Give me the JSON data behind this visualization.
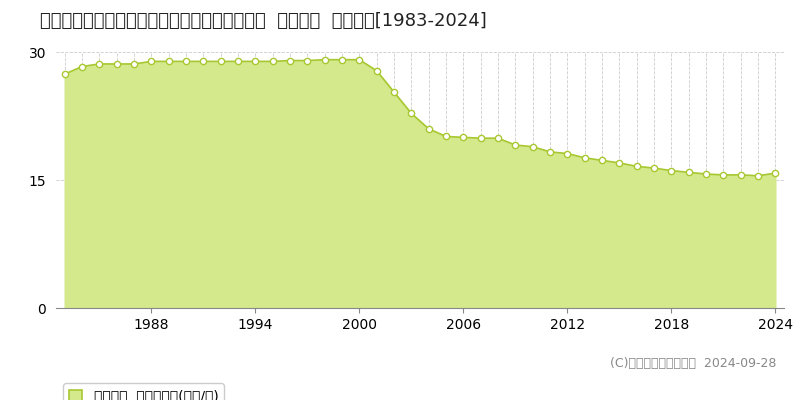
{
  "title": "新潟県上越市西城町３丁目字東二ノ辻１３番７  基準地価  地価推移[1983-2024]",
  "years": [
    1983,
    1984,
    1985,
    1986,
    1987,
    1988,
    1989,
    1990,
    1991,
    1992,
    1993,
    1994,
    1995,
    1996,
    1997,
    1998,
    1999,
    2000,
    2001,
    2002,
    2003,
    2004,
    2005,
    2006,
    2007,
    2008,
    2009,
    2010,
    2011,
    2012,
    2013,
    2014,
    2015,
    2016,
    2017,
    2018,
    2019,
    2020,
    2021,
    2022,
    2023,
    2024
  ],
  "values": [
    27.4,
    28.3,
    28.6,
    28.6,
    28.6,
    28.9,
    28.9,
    28.9,
    28.9,
    28.9,
    28.9,
    28.9,
    28.9,
    29.0,
    29.0,
    29.1,
    29.1,
    29.1,
    27.8,
    25.3,
    22.8,
    21.0,
    20.1,
    20.0,
    19.9,
    19.9,
    19.1,
    18.9,
    18.3,
    18.1,
    17.6,
    17.3,
    17.0,
    16.6,
    16.4,
    16.1,
    15.9,
    15.7,
    15.6,
    15.6,
    15.5,
    15.8
  ],
  "line_color": "#a8c832",
  "fill_color": "#d4e88c",
  "marker_color": "#ffffff",
  "marker_edge_color": "#a8c832",
  "ylim": [
    0,
    30
  ],
  "yticks": [
    0,
    15,
    30
  ],
  "xticks": [
    1988,
    1994,
    2000,
    2006,
    2012,
    2018,
    2024
  ],
  "background_color": "#ffffff",
  "grid_color": "#cccccc",
  "legend_label": "基準地価  平均坪単価(万円/坪)",
  "copyright_text": "(C)土地価格ドットコム  2024-09-28",
  "title_fontsize": 13,
  "axis_fontsize": 10,
  "legend_fontsize": 10,
  "copyright_fontsize": 9
}
